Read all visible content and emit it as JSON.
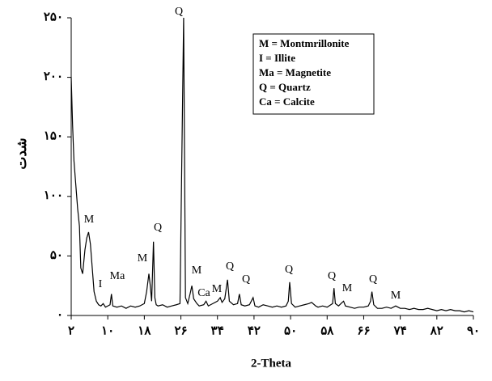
{
  "chart_data": {
    "type": "line",
    "xlabel": "2-Theta",
    "ylabel": "شدت",
    "x": [
      2,
      2.3,
      2.6,
      3,
      3.4,
      3.8,
      4.1,
      4.5,
      5,
      5.4,
      5.8,
      6.2,
      6.6,
      7,
      7.5,
      8,
      8.5,
      9,
      9.5,
      10,
      10.5,
      10.8,
      11.1,
      12,
      13,
      14,
      15,
      16,
      17,
      18,
      18.5,
      19,
      19.3,
      19.6,
      20,
      20.3,
      20.6,
      21,
      22,
      23,
      24,
      25,
      25.8,
      26.2,
      26.6,
      27,
      27.5,
      28,
      28.4,
      28.8,
      29.5,
      30,
      31,
      31.5,
      32,
      33,
      34,
      34.6,
      35,
      35.6,
      36.2,
      36.6,
      37.5,
      38.4,
      38.8,
      39.2,
      40,
      41,
      41.8,
      42.2,
      43,
      44,
      45,
      46,
      47,
      48,
      49,
      49.5,
      49.8,
      50.2,
      51,
      52,
      53,
      54,
      54.6,
      55.5,
      56,
      57,
      58,
      59.2,
      59.5,
      59.8,
      60.5,
      61.3,
      61.6,
      62,
      63,
      64,
      65,
      66,
      67,
      67.5,
      67.8,
      68.2,
      69,
      70,
      71,
      72,
      73,
      73.5,
      74,
      75,
      76,
      77,
      78,
      79,
      80,
      81,
      82,
      83,
      84,
      85,
      86,
      87,
      88,
      89,
      90
    ],
    "values": [
      200,
      160,
      130,
      110,
      90,
      75,
      40,
      35,
      55,
      65,
      70,
      60,
      40,
      20,
      12,
      9,
      8,
      10,
      7,
      8,
      9,
      18,
      8,
      7,
      8,
      6,
      8,
      7,
      8,
      10,
      20,
      35,
      25,
      12,
      62,
      15,
      9,
      8,
      9,
      7,
      8,
      9,
      10,
      130,
      250,
      15,
      10,
      18,
      25,
      14,
      10,
      8,
      9,
      12,
      8,
      10,
      12,
      15,
      11,
      14,
      30,
      12,
      9,
      10,
      18,
      9,
      8,
      9,
      15,
      8,
      7,
      9,
      8,
      7,
      8,
      7,
      8,
      12,
      28,
      10,
      7,
      8,
      9,
      10,
      11,
      8,
      7,
      8,
      7,
      10,
      23,
      10,
      8,
      11,
      12,
      8,
      7,
      6,
      7,
      7,
      8,
      12,
      20,
      9,
      6,
      6,
      7,
      6,
      8,
      7,
      6,
      6,
      5,
      6,
      5,
      5,
      6,
      5,
      4,
      5,
      4,
      5,
      4,
      4,
      3,
      4,
      3
    ],
    "color": "#000000",
    "xlim": [
      2,
      90
    ],
    "ylim": [
      0,
      250
    ],
    "xticks": [
      {
        "value": 2,
        "label": "۲"
      },
      {
        "value": 10,
        "label": "۱۰"
      },
      {
        "value": 18,
        "label": "۱۸"
      },
      {
        "value": 26,
        "label": "۲۶"
      },
      {
        "value": 34,
        "label": "۳۴"
      },
      {
        "value": 42,
        "label": "۴۲"
      },
      {
        "value": 50,
        "label": "۵۰"
      },
      {
        "value": 58,
        "label": "۵۸"
      },
      {
        "value": 66,
        "label": "۶۶"
      },
      {
        "value": 74,
        "label": "۷۴"
      },
      {
        "value": 82,
        "label": "۸۲"
      },
      {
        "value": 90,
        "label": "۹۰"
      }
    ],
    "yticks": [
      {
        "value": 0,
        "label": "۰"
      },
      {
        "value": 50,
        "label": "۵۰"
      },
      {
        "value": 100,
        "label": "۱۰۰"
      },
      {
        "value": 150,
        "label": "۱۵۰"
      },
      {
        "value": 200,
        "label": "۲۰۰"
      },
      {
        "value": 250,
        "label": "۲۵۰"
      }
    ],
    "annotations": [
      "M",
      "I",
      "Ma",
      "M",
      "Q",
      "Q",
      "M",
      "Ca",
      "M",
      "Q",
      "Q",
      "Q",
      "Q",
      "M",
      "Q",
      "M"
    ],
    "legend": [
      "M = Montmrillonite",
      "I = Illite",
      "Ma = Magnetite",
      "Q = Quartz",
      "Ca = Calcite"
    ]
  }
}
